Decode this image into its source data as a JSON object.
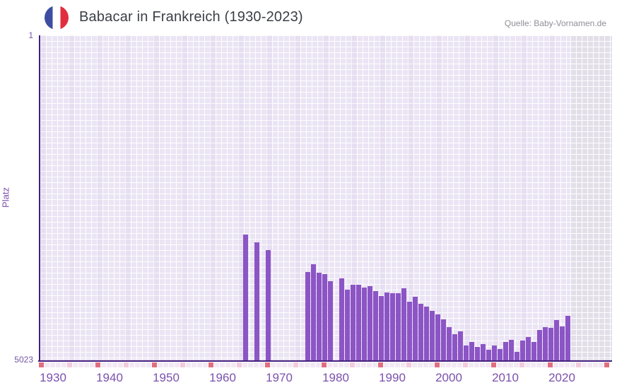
{
  "header": {
    "title": "Babacar in Frankreich (1930-2023)",
    "flag": "france-flag-icon",
    "source": "Quelle: Baby-Vornamen.de"
  },
  "chart_data": {
    "type": "bar",
    "title": "Babacar in Frankreich (1930-2023)",
    "xlabel": "",
    "ylabel": "Platz",
    "ylim": [
      1,
      5023
    ],
    "y_inverted": true,
    "y_axis_labels": {
      "top": "1",
      "bottom": "5023"
    },
    "x_tick_years": [
      1930,
      1940,
      1950,
      1960,
      1970,
      1980,
      1990,
      2000,
      2010,
      2020
    ],
    "grid": true,
    "legend_position": "none",
    "points": [
      {
        "year": 1964,
        "rank": 3080
      },
      {
        "year": 1966,
        "rank": 3200
      },
      {
        "year": 1968,
        "rank": 3320
      },
      {
        "year": 1975,
        "rank": 3660
      },
      {
        "year": 1976,
        "rank": 3540
      },
      {
        "year": 1977,
        "rank": 3670
      },
      {
        "year": 1978,
        "rank": 3690
      },
      {
        "year": 1979,
        "rank": 3800
      },
      {
        "year": 1981,
        "rank": 3760
      },
      {
        "year": 1982,
        "rank": 3930
      },
      {
        "year": 1983,
        "rank": 3850
      },
      {
        "year": 1984,
        "rank": 3850
      },
      {
        "year": 1985,
        "rank": 3900
      },
      {
        "year": 1986,
        "rank": 3880
      },
      {
        "year": 1987,
        "rank": 3950
      },
      {
        "year": 1988,
        "rank": 4030
      },
      {
        "year": 1989,
        "rank": 3970
      },
      {
        "year": 1990,
        "rank": 3990
      },
      {
        "year": 1991,
        "rank": 3990
      },
      {
        "year": 1992,
        "rank": 3910
      },
      {
        "year": 1993,
        "rank": 4120
      },
      {
        "year": 1994,
        "rank": 4040
      },
      {
        "year": 1995,
        "rank": 4150
      },
      {
        "year": 1996,
        "rank": 4190
      },
      {
        "year": 1997,
        "rank": 4260
      },
      {
        "year": 1998,
        "rank": 4310
      },
      {
        "year": 1999,
        "rank": 4390
      },
      {
        "year": 2000,
        "rank": 4510
      },
      {
        "year": 2001,
        "rank": 4620
      },
      {
        "year": 2002,
        "rank": 4570
      },
      {
        "year": 2003,
        "rank": 4790
      },
      {
        "year": 2004,
        "rank": 4740
      },
      {
        "year": 2005,
        "rank": 4820
      },
      {
        "year": 2006,
        "rank": 4770
      },
      {
        "year": 2007,
        "rank": 4860
      },
      {
        "year": 2008,
        "rank": 4790
      },
      {
        "year": 2009,
        "rank": 4850
      },
      {
        "year": 2010,
        "rank": 4740
      },
      {
        "year": 2011,
        "rank": 4710
      },
      {
        "year": 2012,
        "rank": 4890
      },
      {
        "year": 2013,
        "rank": 4720
      },
      {
        "year": 2014,
        "rank": 4660
      },
      {
        "year": 2015,
        "rank": 4740
      },
      {
        "year": 2016,
        "rank": 4550
      },
      {
        "year": 2017,
        "rank": 4510
      },
      {
        "year": 2018,
        "rank": 4520
      },
      {
        "year": 2019,
        "rank": 4400
      },
      {
        "year": 2020,
        "rank": 4500
      },
      {
        "year": 2021,
        "rank": 4340
      }
    ]
  },
  "colors": {
    "bar": "#8c55c5",
    "axis_line": "#44207e",
    "tick_label": "#7b51ad",
    "axis_value_label": "#7458a4",
    "ylabel_color": "#7b51ad",
    "title": "#3a3f46",
    "source": "#8f8f98",
    "plot_cell": "#ebe4f4",
    "no_data_cell": "#e2dfe9",
    "strip_cell": "#f2e9f4",
    "strip_cell_medium": "#f3cbdc",
    "strip_cell_accent": "#e16e7e",
    "flag_blue": "#3d4da1",
    "flag_red": "#e12e3e"
  }
}
